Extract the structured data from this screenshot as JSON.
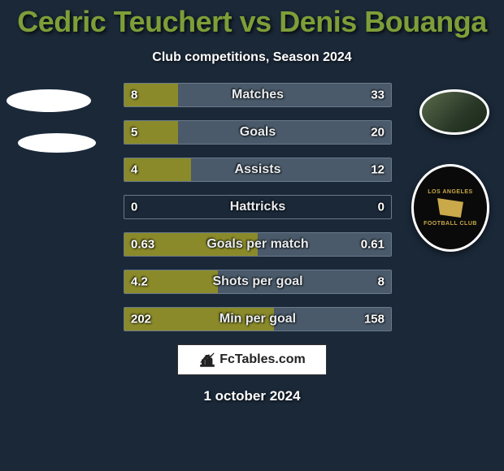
{
  "title": "Cedric Teuchert vs Denis Bouanga",
  "subtitle": "Club competitions, Season 2024",
  "date": "1 october 2024",
  "watermark": "FcTables.com",
  "colors": {
    "background": "#1a2838",
    "title": "#7d9e38",
    "bar_left": "#8a8a2a",
    "bar_right": "#4a5a6a",
    "row_border": "#6a7a8a",
    "text": "#ffffff"
  },
  "club_right": {
    "name": "LOS ANGELES",
    "sub": "FOOTBALL CLUB",
    "accent": "#c9a94a"
  },
  "rows": [
    {
      "label": "Matches",
      "left_val": "8",
      "right_val": "33",
      "left_pct": 20,
      "right_pct": 80
    },
    {
      "label": "Goals",
      "left_val": "5",
      "right_val": "20",
      "left_pct": 20,
      "right_pct": 80
    },
    {
      "label": "Assists",
      "left_val": "4",
      "right_val": "12",
      "left_pct": 25,
      "right_pct": 75
    },
    {
      "label": "Hattricks",
      "left_val": "0",
      "right_val": "0",
      "left_pct": 0,
      "right_pct": 0
    },
    {
      "label": "Goals per match",
      "left_val": "0.63",
      "right_val": "0.61",
      "left_pct": 50,
      "right_pct": 50
    },
    {
      "label": "Shots per goal",
      "left_val": "4.2",
      "right_val": "8",
      "left_pct": 35,
      "right_pct": 65
    },
    {
      "label": "Min per goal",
      "left_val": "202",
      "right_val": "158",
      "left_pct": 56,
      "right_pct": 44
    }
  ]
}
